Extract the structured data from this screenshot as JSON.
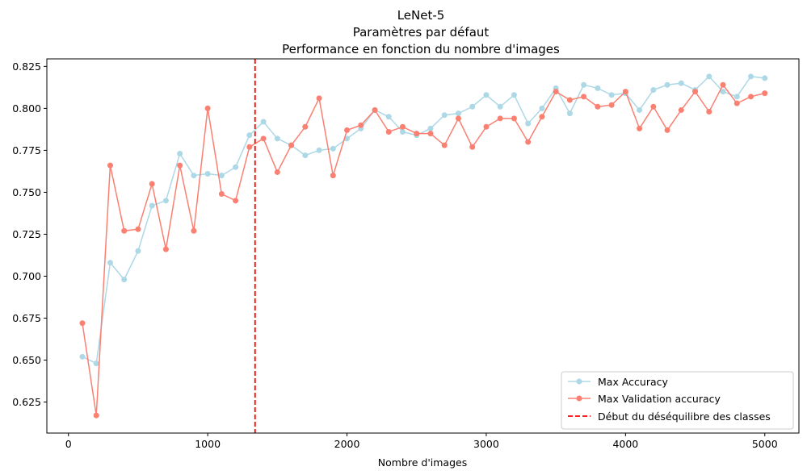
{
  "chart_data": {
    "type": "line",
    "title_lines": [
      "LeNet-5",
      "Paramètres par défaut",
      "Performance en fonction du nombre d'images"
    ],
    "xlabel": "Nombre d'images",
    "ylabel": "",
    "xlim": [
      -155,
      5245
    ],
    "ylim": [
      0.6065,
      0.8295
    ],
    "xticks": [
      0,
      1000,
      2000,
      3000,
      4000,
      5000
    ],
    "yticks": [
      0.625,
      0.65,
      0.675,
      0.7,
      0.725,
      0.75,
      0.775,
      0.8,
      0.825
    ],
    "ytick_labels": [
      "0.625",
      "0.650",
      "0.675",
      "0.700",
      "0.725",
      "0.750",
      "0.775",
      "0.800",
      "0.825"
    ],
    "grid": false,
    "legend_position": "lower right",
    "x": [
      100,
      200,
      300,
      400,
      500,
      600,
      700,
      800,
      900,
      1000,
      1100,
      1200,
      1300,
      1400,
      1500,
      1600,
      1700,
      1800,
      1900,
      2000,
      2100,
      2200,
      2300,
      2400,
      2500,
      2600,
      2700,
      2800,
      2900,
      3000,
      3100,
      3200,
      3300,
      3400,
      3500,
      3600,
      3700,
      3800,
      3900,
      4000,
      4100,
      4200,
      4300,
      4400,
      4500,
      4600,
      4700,
      4800,
      4900,
      5000
    ],
    "series": [
      {
        "name": "Max Accuracy",
        "color": "#add8e6",
        "values": [
          0.652,
          0.648,
          0.708,
          0.698,
          0.715,
          0.742,
          0.745,
          0.773,
          0.76,
          0.761,
          0.76,
          0.765,
          0.784,
          0.792,
          0.782,
          0.778,
          0.772,
          0.775,
          0.776,
          0.782,
          0.788,
          0.799,
          0.795,
          0.786,
          0.784,
          0.788,
          0.796,
          0.797,
          0.801,
          0.808,
          0.801,
          0.808,
          0.791,
          0.8,
          0.812,
          0.797,
          0.814,
          0.812,
          0.808,
          0.809,
          0.799,
          0.811,
          0.814,
          0.815,
          0.811,
          0.819,
          0.81,
          0.807,
          0.819,
          0.818
        ]
      },
      {
        "name": "Max Validation accuracy",
        "color": "#fa8072",
        "values": [
          0.672,
          0.617,
          0.766,
          0.727,
          0.728,
          0.755,
          0.716,
          0.766,
          0.727,
          0.8,
          0.749,
          0.745,
          0.777,
          0.782,
          0.762,
          0.778,
          0.789,
          0.806,
          0.76,
          0.787,
          0.79,
          0.799,
          0.786,
          0.789,
          0.785,
          0.785,
          0.778,
          0.794,
          0.777,
          0.789,
          0.794,
          0.794,
          0.78,
          0.795,
          0.81,
          0.805,
          0.807,
          0.801,
          0.802,
          0.81,
          0.788,
          0.801,
          0.787,
          0.799,
          0.81,
          0.798,
          0.814,
          0.803,
          0.807,
          0.809
        ]
      }
    ],
    "vline": {
      "x": 1340,
      "name": "Début du déséquilibre des classes",
      "color": "#ff0000",
      "style": "dashed"
    }
  }
}
